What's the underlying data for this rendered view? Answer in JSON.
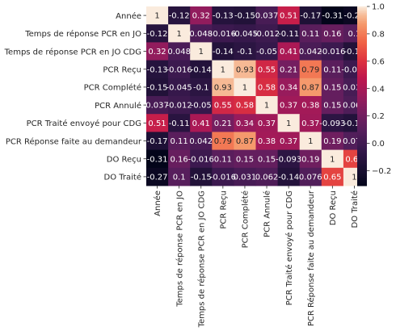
{
  "chart_data": {
    "type": "heatmap",
    "labels": [
      "Année",
      "Temps de réponse PCR en JO",
      "Temps de réponse PCR en JO CDG",
      "PCR Reçu",
      "PCR Complété",
      "PCR Annulé",
      "PCR Traité envoyé pour CDG",
      "PCR Réponse faite au demandeur",
      "DO Reçu",
      "DO Traité"
    ],
    "values": [
      [
        1,
        -0.12,
        0.32,
        -0.13,
        -0.15,
        0.037,
        0.51,
        -0.17,
        -0.31,
        -0.27
      ],
      [
        -0.12,
        1,
        0.048,
        -0.016,
        -0.045,
        -0.012,
        -0.11,
        0.11,
        0.16,
        0.1
      ],
      [
        0.32,
        0.048,
        1,
        -0.14,
        -0.1,
        -0.05,
        0.41,
        0.042,
        -0.016,
        -0.15
      ],
      [
        -0.13,
        -0.016,
        -0.14,
        1,
        0.93,
        0.55,
        0.21,
        0.79,
        0.11,
        -0.016
      ],
      [
        -0.15,
        -0.045,
        -0.1,
        0.93,
        1,
        0.58,
        0.34,
        0.87,
        0.15,
        0.031
      ],
      [
        0.037,
        -0.012,
        -0.05,
        0.55,
        0.58,
        1,
        0.37,
        0.38,
        0.15,
        0.062
      ],
      [
        0.51,
        -0.11,
        0.41,
        0.21,
        0.34,
        0.37,
        1,
        0.37,
        -0.093,
        -0.14
      ],
      [
        -0.17,
        0.11,
        0.042,
        0.79,
        0.87,
        0.38,
        0.37,
        1,
        0.19,
        0.076
      ],
      [
        -0.31,
        0.16,
        -0.016,
        0.11,
        0.15,
        0.15,
        -0.093,
        0.19,
        1,
        0.65
      ],
      [
        -0.27,
        0.1,
        -0.15,
        -0.016,
        0.031,
        0.062,
        -0.14,
        0.076,
        0.65,
        1
      ]
    ],
    "value_labels": [
      [
        "1",
        "-0.12",
        "0.32",
        "-0.13",
        "-0.15",
        "0.037",
        "0.51",
        "-0.17",
        "-0.31",
        "-0.27"
      ],
      [
        "-0.12",
        "1",
        "0.048",
        "-0.016",
        "-0.045",
        "-0.012",
        "-0.11",
        "0.11",
        "0.16",
        "0.1"
      ],
      [
        "0.32",
        "0.048",
        "1",
        "-0.14",
        "-0.1",
        "-0.05",
        "0.41",
        "0.042",
        "-0.016",
        "-0.15"
      ],
      [
        "-0.13",
        "-0.016",
        "-0.14",
        "1",
        "0.93",
        "0.55",
        "0.21",
        "0.79",
        "0.11",
        "-0.016"
      ],
      [
        "-0.15",
        "-0.045",
        "-0.1",
        "0.93",
        "1",
        "0.58",
        "0.34",
        "0.87",
        "0.15",
        "0.031"
      ],
      [
        "0.037",
        "-0.012",
        "-0.05",
        "0.55",
        "0.58",
        "1",
        "0.37",
        "0.38",
        "0.15",
        "0.062"
      ],
      [
        "0.51",
        "-0.11",
        "0.41",
        "0.21",
        "0.34",
        "0.37",
        "1",
        "0.37",
        "-0.093",
        "-0.14"
      ],
      [
        "-0.17",
        "0.11",
        "0.042",
        "0.79",
        "0.87",
        "0.38",
        "0.37",
        "1",
        "0.19",
        "0.076"
      ],
      [
        "-0.31",
        "0.16",
        "-0.016",
        "0.11",
        "0.15",
        "0.15",
        "-0.093",
        "0.19",
        "1",
        "0.65"
      ],
      [
        "-0.27",
        "0.1",
        "-0.15",
        "-0.016",
        "0.031",
        "0.062",
        "-0.14",
        "0.076",
        "0.65",
        "1"
      ]
    ],
    "colorbar": {
      "range": [
        -0.31,
        1
      ],
      "ticks": [
        -0.2,
        0,
        0.2,
        0.4,
        0.6,
        0.8,
        1.0
      ],
      "tick_labels": [
        "−0.2",
        "0.0",
        "0.2",
        "0.4",
        "0.6",
        "0.8",
        "1.0"
      ]
    },
    "colormap": "rocket",
    "title": "",
    "xlabel": "",
    "ylabel": "",
    "grid": false
  }
}
